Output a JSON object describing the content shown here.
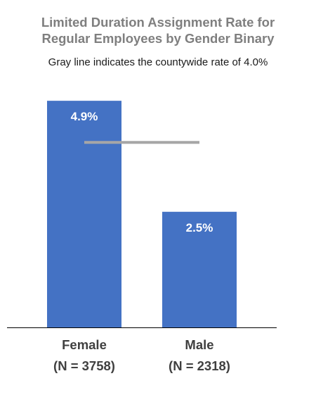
{
  "chart_data": {
    "type": "bar",
    "title": "Limited Duration Assignment Rate for\nRegular Employees by Gender Binary",
    "subtitle": "Gray line indicates the countywide rate of 4.0%",
    "categories": [
      "Female",
      "Male"
    ],
    "category_sublabels": [
      "(N = 3758)",
      "(N = 2318)"
    ],
    "values": [
      4.9,
      2.5
    ],
    "data_labels": [
      "4.9%",
      "2.5%"
    ],
    "reference_line": 4.0,
    "ylim": [
      0,
      5.1
    ],
    "grid": false,
    "legend": "none",
    "colors": {
      "bar": "#4472c4",
      "reference_line": "#a6a6a6",
      "axis": "#000000"
    }
  }
}
